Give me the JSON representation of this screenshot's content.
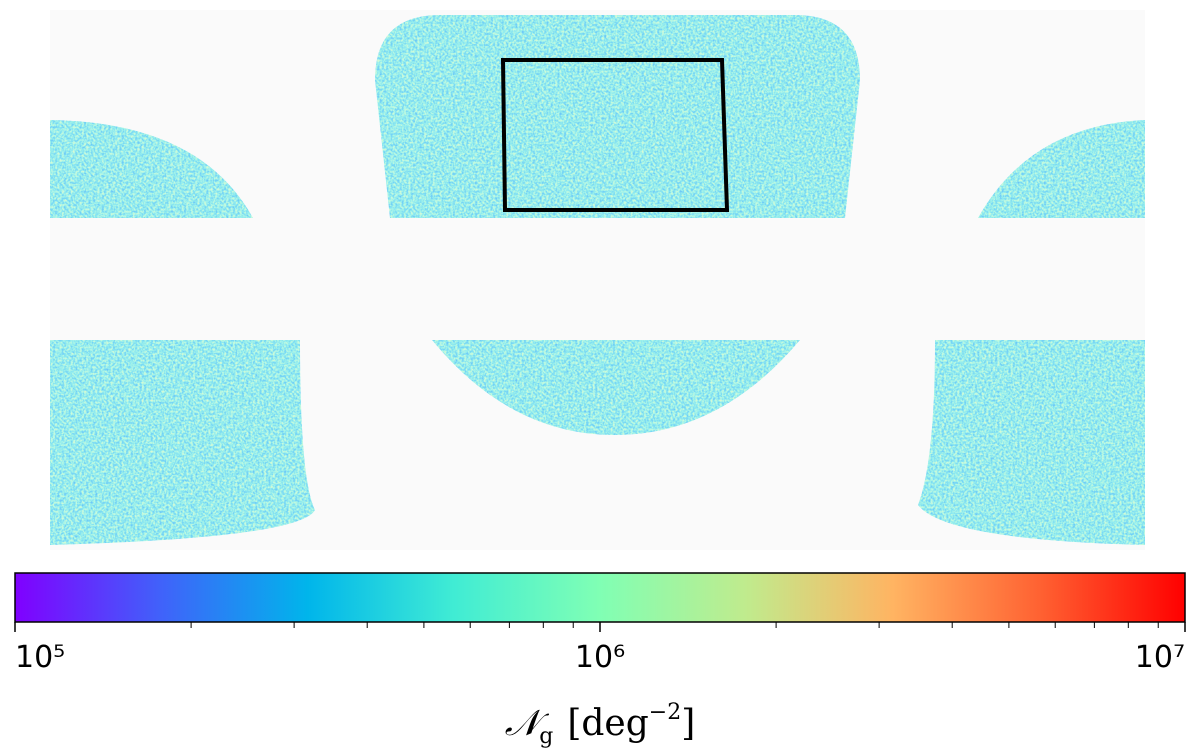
{
  "chart_data": {
    "type": "colorbar",
    "xlim": [
      100000,
      10000000
    ],
    "log": true,
    "xticks": [
      {
        "value": 100000,
        "label": "10⁵"
      },
      {
        "value": 1000000,
        "label": "10⁶"
      },
      {
        "value": 10000000,
        "label": "10⁷"
      }
    ],
    "xminorticks": [
      200000,
      300000,
      400000,
      500000,
      600000,
      700000,
      800000,
      900000,
      2000000,
      3000000,
      4000000,
      5000000,
      6000000,
      7000000,
      8000000,
      9000000
    ],
    "xlabel": [
      "𝒩",
      "g",
      "[deg",
      "−2",
      "]"
    ],
    "colormap": [
      "#8000ff",
      "#4062fa",
      "#00b5eb",
      "#40ecd4",
      "#80ffb4",
      "#c0eb8d",
      "#ffb462",
      "#ff6232",
      "#ff0000"
    ]
  }
}
